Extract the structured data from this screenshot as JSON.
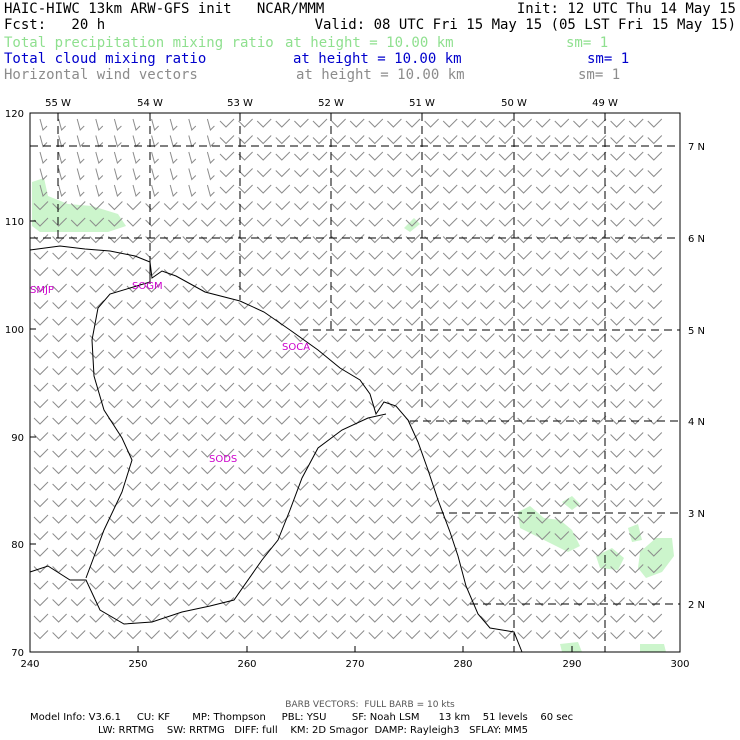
{
  "header": {
    "line1_left": "HAIC-HIWC 13km ARW-GFS init   NCAR/MMM",
    "line1_right": "Init: 12 UTC Thu 14 May 15",
    "line2_left": "Fcst:   20 h",
    "line2_right": "Valid: 08 UTC Fri 15 May 15 (05 LST Fri 15 May 15)",
    "fields": [
      {
        "name": "Total precipitation mixing ratio",
        "height": "at height = 10.00 km",
        "sm": "sm= 1",
        "color": "#8fe08f"
      },
      {
        "name": "Total cloud mixing ratio",
        "height": "at height = 10.00 km",
        "sm": "sm= 1",
        "color": "#0000cc"
      },
      {
        "name": "Horizontal wind vectors",
        "height": "at height = 10.00 km",
        "sm": "sm= 1",
        "color": "#8c8c8c"
      }
    ]
  },
  "map": {
    "x_ticks": [
      "240",
      "250",
      "260",
      "270",
      "280",
      "290",
      "300"
    ],
    "y_ticks": [
      "70",
      "80",
      "90",
      "100",
      "110",
      "120"
    ],
    "lon_labels": [
      "55 W",
      "54 W",
      "53 W",
      "52 W",
      "51 W",
      "50 W",
      "49 W"
    ],
    "lat_labels": [
      "7 N",
      "6 N",
      "5 N",
      "4 N",
      "3 N",
      "2 N"
    ],
    "stations": [
      "SMJP",
      "SOGM",
      "SOCA",
      "SODS"
    ],
    "colors": {
      "coast": "#000000",
      "precip": "#ccf5cc",
      "barb": "#8c8c8c",
      "station": "#cc00cc"
    }
  },
  "footer": {
    "barb_note": "BARB VECTORS:  FULL BARB = 10 kts",
    "model_line1": "Model Info: V3.6.1     CU: KF       MP: Thompson     PBL: YSU        SF: Noah LSM      13 km    51 levels    60 sec",
    "model_line2": "LW: RRTMG    SW: RRTMG   DIFF: full    KM: 2D Smagor  DAMP: Rayleigh3   SFLAY: MM5"
  }
}
